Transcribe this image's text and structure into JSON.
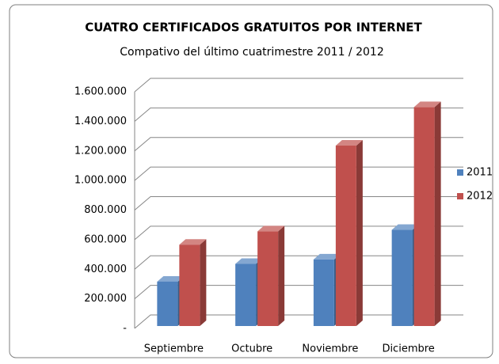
{
  "chart_data": {
    "type": "bar",
    "title": "CUATRO CERTIFICADOS GRATUITOS POR INTERNET",
    "subtitle": "Compativo del último cuatrimestre  2011 / 2012",
    "categories": [
      "Septiembre",
      "Octubre",
      "Noviembre",
      "Diciembre"
    ],
    "series": [
      {
        "name": "2011",
        "color": "#4f81bd",
        "values": [
          300000,
          420000,
          450000,
          650000
        ]
      },
      {
        "name": "2012",
        "color": "#c0504d",
        "values": [
          550000,
          640000,
          1220000,
          1480000
        ]
      }
    ],
    "ylim": [
      0,
      1600000
    ],
    "yticks": [
      {
        "value": 0,
        "label": "-"
      },
      {
        "value": 200000,
        "label": "200.000"
      },
      {
        "value": 400000,
        "label": "400.000"
      },
      {
        "value": 600000,
        "label": "600.000"
      },
      {
        "value": 800000,
        "label": "800.000"
      },
      {
        "value": 1000000,
        "label": "1.000.000"
      },
      {
        "value": 1200000,
        "label": "1.200.000"
      },
      {
        "value": 1400000,
        "label": "1.400.000"
      },
      {
        "value": 1600000,
        "label": "1.600.000"
      }
    ],
    "grid": true,
    "legend": "right"
  }
}
